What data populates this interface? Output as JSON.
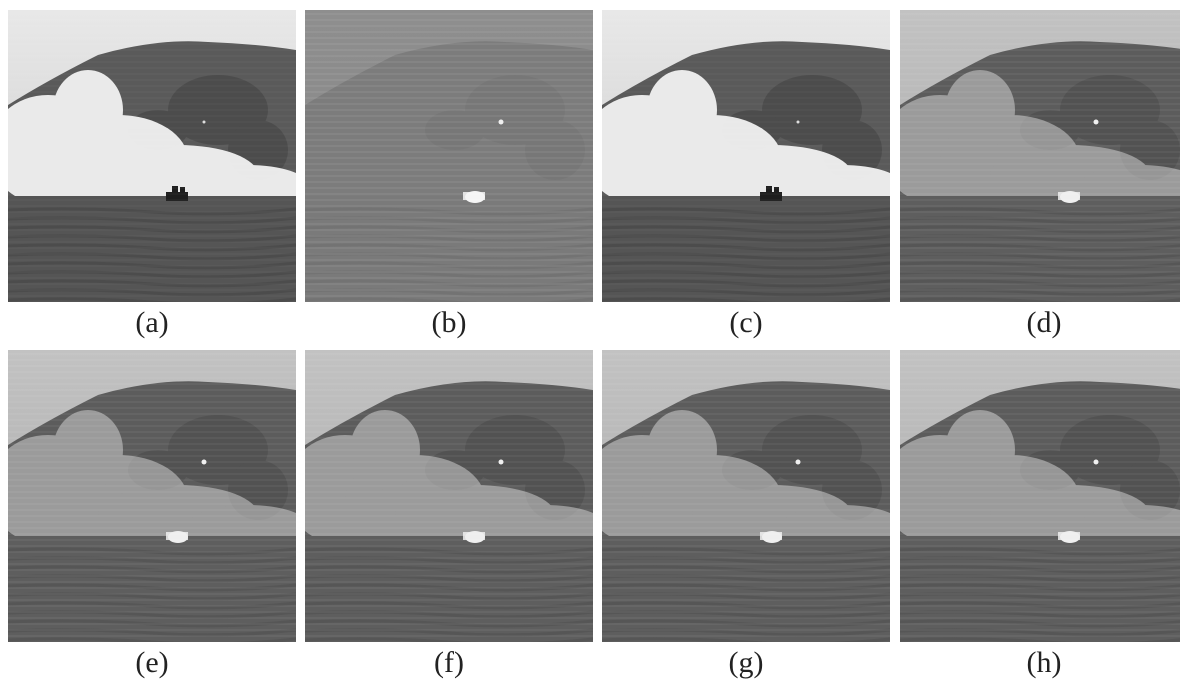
{
  "figure": {
    "panels": [
      {
        "label": "(a)",
        "variant": "visible-smoke"
      },
      {
        "label": "(b)",
        "variant": "infrared"
      },
      {
        "label": "(c)",
        "variant": "visible-smoke"
      },
      {
        "label": "(d)",
        "variant": "fused"
      },
      {
        "label": "(e)",
        "variant": "fused"
      },
      {
        "label": "(f)",
        "variant": "fused"
      },
      {
        "label": "(g)",
        "variant": "fused"
      },
      {
        "label": "(h)",
        "variant": "fused"
      }
    ]
  }
}
